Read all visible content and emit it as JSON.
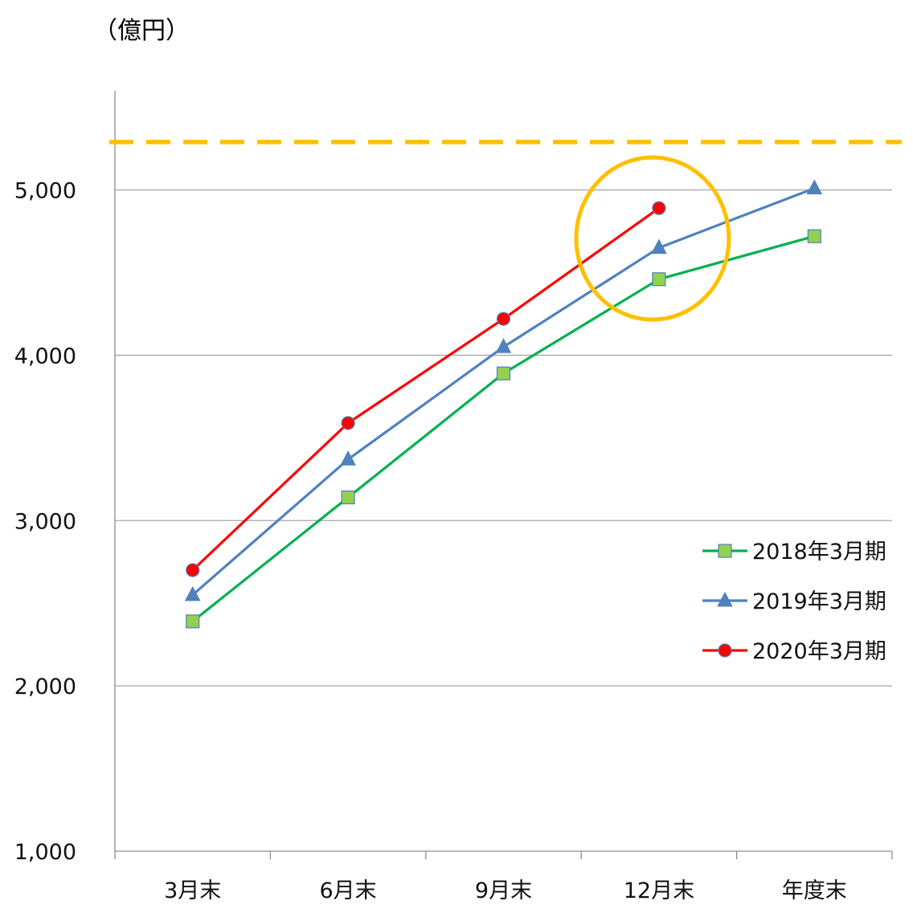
{
  "chart_data": {
    "type": "line",
    "unit_label": "（億円）",
    "categories": [
      "3月末",
      "6月末",
      "9月末",
      "12月末",
      "年度末"
    ],
    "ylim": [
      1000,
      5600
    ],
    "yticks": [
      1000,
      2000,
      3000,
      4000,
      5000
    ],
    "ytick_labels": [
      "1,000",
      "2,000",
      "3,000",
      "4,000",
      "5,000"
    ],
    "grid": true,
    "legend_position": "right",
    "series": [
      {
        "name": "2018年3月期",
        "values": [
          2390,
          3140,
          3890,
          4460,
          4720
        ],
        "color": "#00b050",
        "marker": "square",
        "marker_fill": "#92d050"
      },
      {
        "name": "2019年3月期",
        "values": [
          2550,
          3370,
          4050,
          4650,
          5010
        ],
        "color": "#4f81bd",
        "marker": "triangle",
        "marker_fill": "#4f81bd"
      },
      {
        "name": "2020年3月期",
        "values": [
          2700,
          3590,
          4220,
          4890,
          null
        ],
        "color": "#ff0000",
        "marker": "circle",
        "marker_fill": "#ff0000"
      }
    ],
    "target_line": {
      "value": 5290,
      "color": "#ffc000",
      "style": "dashed"
    },
    "highlight": {
      "category_index": 3,
      "color": "#ffc000",
      "shape": "circle"
    }
  }
}
